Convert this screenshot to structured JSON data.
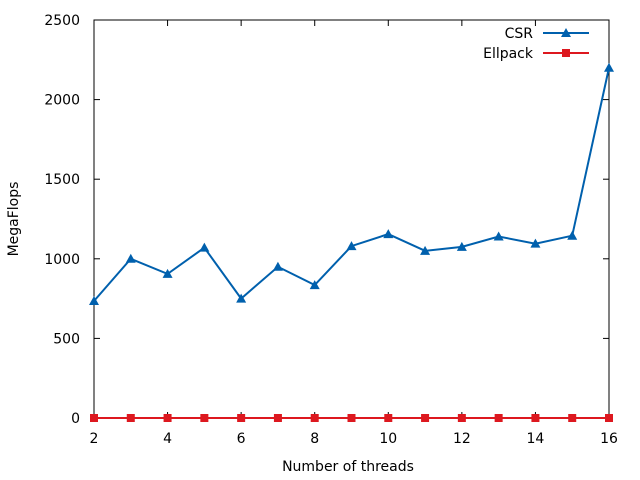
{
  "chart_data": {
    "type": "line",
    "xlabel": "Number of threads",
    "ylabel": "MegaFlops",
    "xlim": [
      2,
      16
    ],
    "ylim": [
      0,
      2500
    ],
    "xticks": [
      2,
      4,
      6,
      8,
      10,
      12,
      14,
      16
    ],
    "yticks": [
      0,
      500,
      1000,
      1500,
      2000,
      2500
    ],
    "grid": false,
    "legend_position": "top-right",
    "x": [
      2,
      3,
      4,
      5,
      6,
      7,
      8,
      9,
      10,
      11,
      12,
      13,
      14,
      15,
      16
    ],
    "series": [
      {
        "name": "CSR",
        "marker": "triangle",
        "color": "#0060ad",
        "values": [
          735,
          1000,
          905,
          1070,
          750,
          950,
          835,
          1080,
          1155,
          1050,
          1075,
          1140,
          1095,
          1145,
          2200
        ]
      },
      {
        "name": "Ellpack",
        "marker": "square",
        "color": "#dd181f",
        "values": [
          0,
          0,
          0,
          0,
          0,
          0,
          0,
          0,
          0,
          0,
          0,
          0,
          0,
          0,
          0
        ]
      }
    ]
  }
}
